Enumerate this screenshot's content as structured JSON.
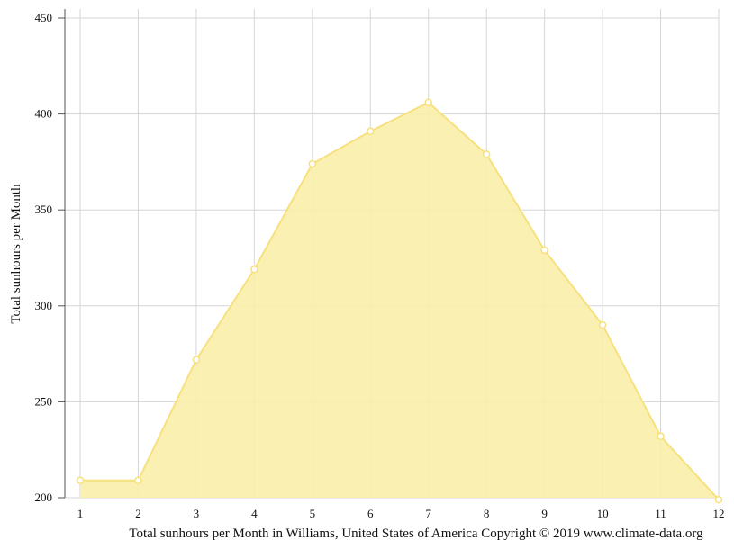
{
  "chart_data": {
    "type": "area",
    "x": [
      1,
      2,
      3,
      4,
      5,
      6,
      7,
      8,
      9,
      10,
      11,
      12
    ],
    "series": [
      {
        "values": [
          209,
          209,
          272,
          319,
          374,
          391,
          406,
          379,
          329,
          290,
          232,
          199
        ]
      }
    ],
    "ylabel": "Total sunhours per Month",
    "caption": "Total sunhours per Month in Williams, United States of America Copyright © 2019 www.climate-data.org",
    "ylim": [
      200,
      450
    ],
    "xlim": [
      1,
      12
    ],
    "yticks": [
      200,
      250,
      300,
      350,
      400,
      450
    ],
    "xticks": [
      1,
      2,
      3,
      4,
      5,
      6,
      7,
      8,
      9,
      10,
      11,
      12
    ],
    "grid": true,
    "colors": {
      "fill": "#faeeaa",
      "line": "#f7e07e",
      "marker_fill": "#ffffff",
      "grid": "#d6d6d6",
      "axis": "#555555"
    }
  }
}
